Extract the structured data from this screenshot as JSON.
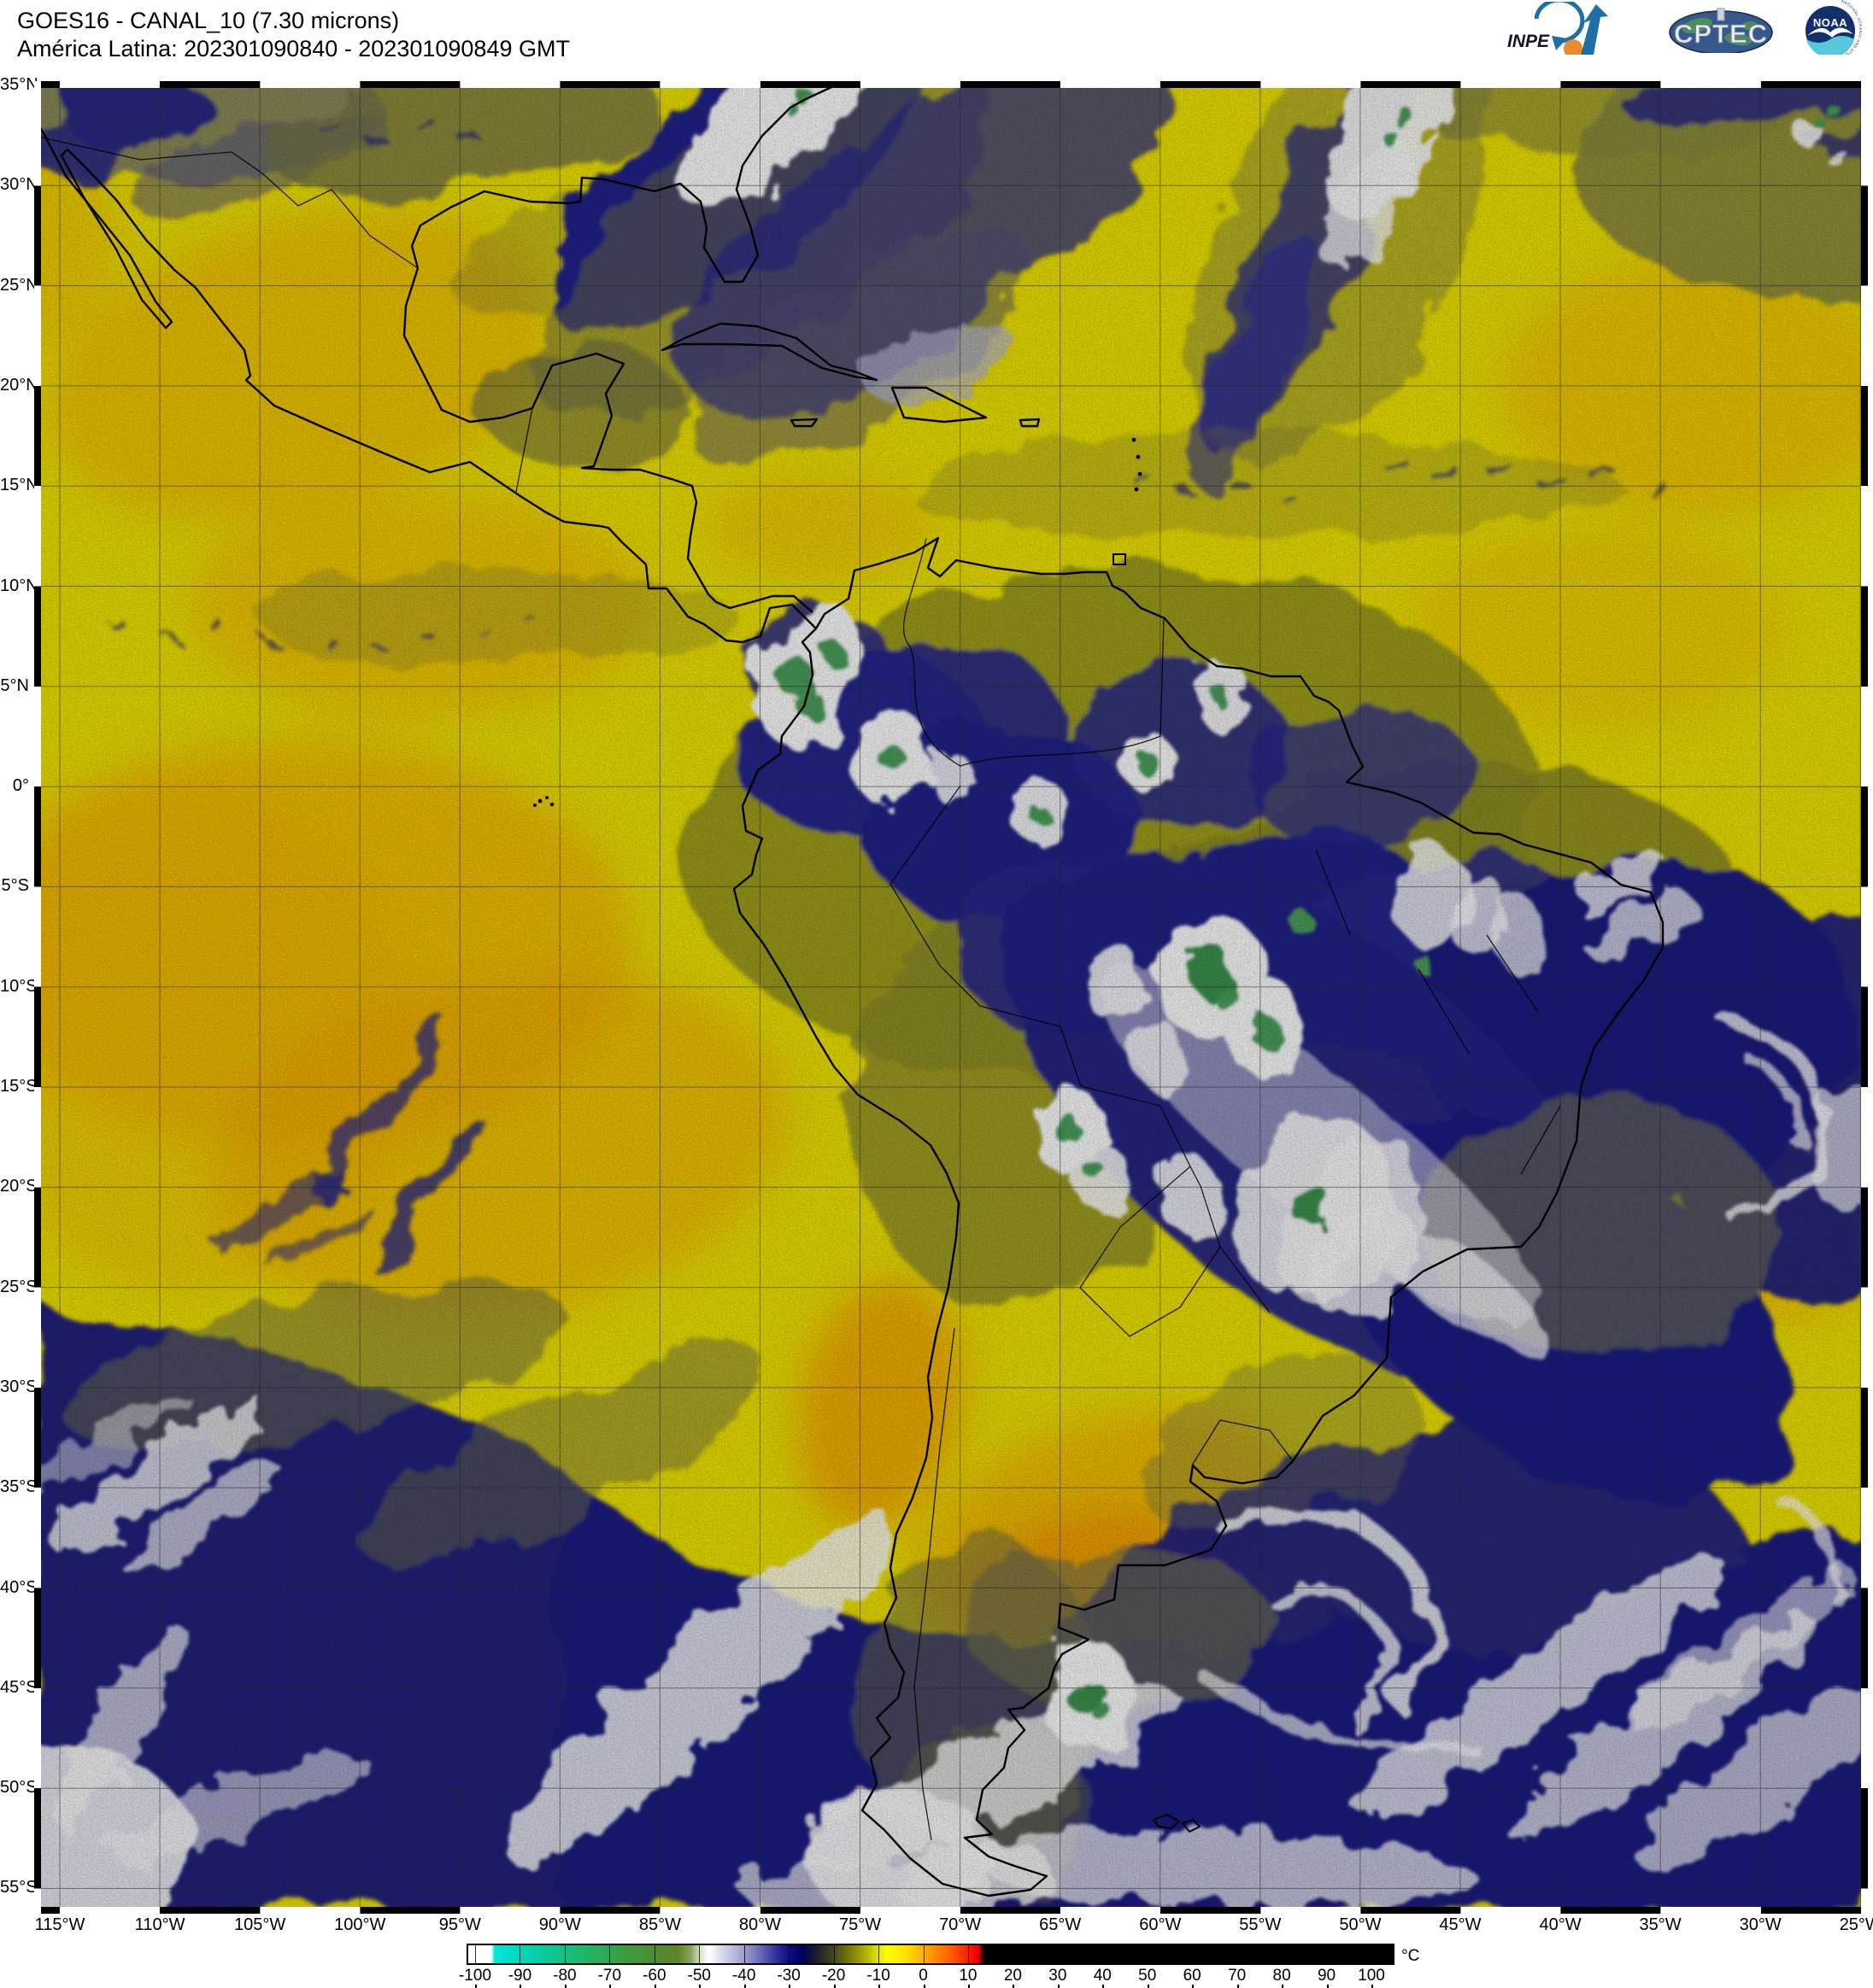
{
  "header": {
    "line1": "GOES16 - CANAL_10 (7.30 microns)",
    "line2": "América Latina: 202301090840 - 202301090849 GMT"
  },
  "logos": {
    "inpe_label": "INPE",
    "cptec_label": "CPTEC",
    "noaa_label": "NOAA",
    "noaa_ring_text": "NATIONAL OCEANIC AND ATMOSPHERIC ADMINISTRATION"
  },
  "map": {
    "lat_labels": [
      "35°N",
      "30°N",
      "25°N",
      "20°N",
      "15°N",
      "10°N",
      "5°N",
      "0°",
      "5°S",
      "10°S",
      "15°S",
      "20°S",
      "25°S",
      "30°S",
      "35°S",
      "40°S",
      "45°S",
      "50°S",
      "55°S"
    ],
    "lon_labels": [
      "115°W",
      "110°W",
      "105°W",
      "100°W",
      "95°W",
      "90°W",
      "85°W",
      "80°W",
      "75°W",
      "70°W",
      "65°W",
      "60°W",
      "55°W",
      "50°W",
      "45°W",
      "40°W",
      "35°W",
      "30°W",
      "25°W"
    ]
  },
  "colorbar": {
    "unit": "°C",
    "ticks": [
      "-100",
      "-90",
      "-80",
      "-70",
      "-60",
      "-50",
      "-40",
      "-30",
      "-20",
      "-10",
      "0",
      "10",
      "20",
      "30",
      "40",
      "50",
      "60",
      "70",
      "80",
      "90",
      "100"
    ],
    "stops": [
      {
        "t": -100,
        "c": "#ffffff"
      },
      {
        "t": -96.8,
        "c": "#ffffff"
      },
      {
        "t": -96,
        "c": "#00e8d8"
      },
      {
        "t": -90,
        "c": "#00d8bc"
      },
      {
        "t": -84,
        "c": "#0cc896"
      },
      {
        "t": -78,
        "c": "#1cba74"
      },
      {
        "t": -72,
        "c": "#2cab58"
      },
      {
        "t": -66,
        "c": "#3f9a3e"
      },
      {
        "t": -60,
        "c": "#4f8c2c"
      },
      {
        "t": -55,
        "c": "#5d8426"
      },
      {
        "t": -52,
        "c": "#8aa45c"
      },
      {
        "t": -50,
        "c": "#d9e4c8"
      },
      {
        "t": -48,
        "c": "#ffffff"
      },
      {
        "t": -46,
        "c": "#e4e4f2"
      },
      {
        "t": -42,
        "c": "#b4b4da"
      },
      {
        "t": -38,
        "c": "#8080c2"
      },
      {
        "t": -35,
        "c": "#5050aa"
      },
      {
        "t": -32,
        "c": "#242496"
      },
      {
        "t": -30,
        "c": "#0b0b86"
      },
      {
        "t": -27,
        "c": "#000055"
      },
      {
        "t": -24,
        "c": "#1c1c30"
      },
      {
        "t": -21,
        "c": "#3c3c1c"
      },
      {
        "t": -18,
        "c": "#64640e"
      },
      {
        "t": -15,
        "c": "#909006"
      },
      {
        "t": -12,
        "c": "#c0c000"
      },
      {
        "t": -10,
        "c": "#e8e800"
      },
      {
        "t": -8,
        "c": "#ffff00"
      },
      {
        "t": -4,
        "c": "#ffe000"
      },
      {
        "t": 0,
        "c": "#ffb000"
      },
      {
        "t": 3,
        "c": "#ff8800"
      },
      {
        "t": 6,
        "c": "#ff6000"
      },
      {
        "t": 9,
        "c": "#ff3000"
      },
      {
        "t": 11,
        "c": "#ff0c00"
      },
      {
        "t": 12.5,
        "c": "#e00000"
      },
      {
        "t": 13.5,
        "c": "#000000"
      },
      {
        "t": 100,
        "c": "#000000"
      }
    ]
  },
  "palette": {
    "base_yellow": "#f2e600",
    "warm_orange": "#f5a800",
    "moist_navy": "#26268e",
    "olive": "#9a9a1e",
    "cloud_white": "#ffffff",
    "cold_top_green": "#4ba15c",
    "inpe_blue": "#1d6fa5",
    "noaa_navy": "#12306b",
    "noaa_cyan": "#57c7dc"
  }
}
